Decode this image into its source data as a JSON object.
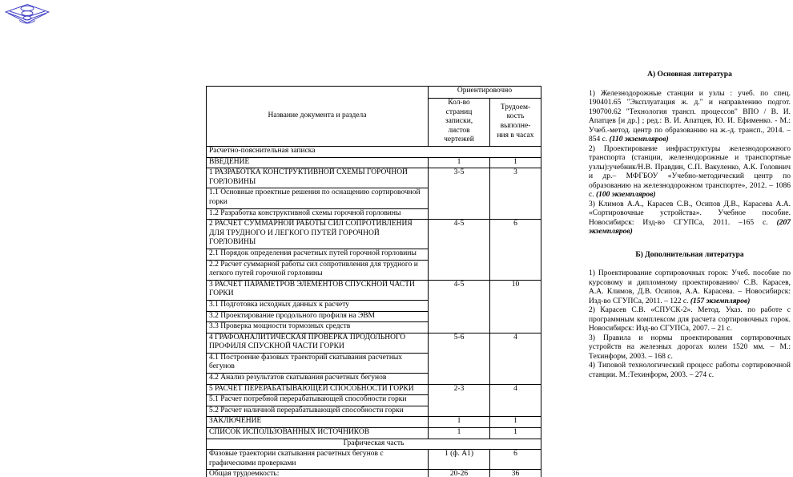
{
  "logo": {
    "name": "university-emblem",
    "color": "#4343c6"
  },
  "table": {
    "header": {
      "col1": "Название документа и раздела",
      "group": "Ориентировочно",
      "col2": "Кол-во\nстраниц\nзаписки,\nлистов\nчертежей",
      "col3": "Трудоем-\nкость\nвыполне-\nния в часах"
    },
    "rows": [
      {
        "type": "span",
        "align": "left",
        "label": "Расчетно-пояснительная записка"
      },
      {
        "type": "row",
        "label": "ВВЕДЕНИЕ",
        "pages": "1",
        "hours": "1",
        "rowspan": 1
      },
      {
        "type": "row",
        "label": "1 РАЗРАБОТКА КОНСТРУКТИВНОЙ СХЕМЫ ГОРОЧНОЙ ГОРЛОВИНЫ",
        "pages": "3-5",
        "hours": "3",
        "rowspan": 3
      },
      {
        "type": "sub",
        "label": "1.1 Основные проектные решения по оснащению сортировочной горки"
      },
      {
        "type": "sub",
        "label": "1.2 Разработка конструктивной схемы горочной горловины"
      },
      {
        "type": "row",
        "label": "2 РАСЧЕТ СУММАРНОЙ РАБОТЫ СИЛ СОПРОТИВЛЕНИЯ ДЛЯ ТРУДНОГО И ЛЕГКОГО ПУТЕЙ ГОРОЧНОЙ ГОРЛОВИНЫ",
        "pages": "4-5",
        "hours": "6",
        "rowspan": 3
      },
      {
        "type": "sub",
        "label": "2.1 Порядок определения расчетных путей горочной горловины"
      },
      {
        "type": "sub",
        "label": "2.2 Расчет суммарной работы сил сопротивления для трудного и легкого путей горочной горловины"
      },
      {
        "type": "row",
        "label": "3 РАСЧЕТ ПАРАМЕТРОВ ЭЛЕМЕНТОВ СПУСКНОЙ ЧАСТИ ГОРКИ",
        "pages": "4-5",
        "hours": "10",
        "rowspan": 4
      },
      {
        "type": "sub",
        "label": "3.1 Подготовка исходных данных к расчету"
      },
      {
        "type": "sub",
        "label": "3.2 Проектирование продольного профиля на ЭВМ"
      },
      {
        "type": "sub",
        "label": "3.3 Проверка мощности тормозных средств"
      },
      {
        "type": "row",
        "label": "4 ГРАФОАНАЛИТИЧЕСКАЯ ПРОВЕРКА ПРОДОЛЬНОГО ПРОФИЛЯ СПУСКНОЙ ЧАСТИ ГОРКИ",
        "pages": "5-6",
        "hours": "4",
        "rowspan": 3
      },
      {
        "type": "sub",
        "label": "4.1 Построение фазовых траекторий скатывания расчетных бегунов"
      },
      {
        "type": "sub",
        "label": "4.2 Анализ результатов скатывания расчетных бегунов"
      },
      {
        "type": "row",
        "label": "5 РАСЧЕТ ПЕРЕРАБАТЫВАЮЩЕЙ СПОСОБНОСТИ ГОРКИ",
        "pages": "2-3",
        "hours": "4",
        "rowspan": 3
      },
      {
        "type": "sub",
        "label": "5.1 Расчет потребной перерабатывающей способности горки"
      },
      {
        "type": "sub",
        "label": "5.2 Расчет наличной перерабатывающей способности горки"
      },
      {
        "type": "row",
        "label": "ЗАКЛЮЧЕНИЕ",
        "pages": "1",
        "hours": "1",
        "rowspan": 1
      },
      {
        "type": "row",
        "label": "СПИСОК ИСПОЛЬЗОВАННЫХ ИСТОЧНИКОВ",
        "pages": "1",
        "hours": "1",
        "rowspan": 1
      },
      {
        "type": "span",
        "align": "center",
        "label": "Графическая часть"
      },
      {
        "type": "row",
        "label": "Фазовые траектории скатывания расчетных бегунов с графическими проверками",
        "pages": "1 (ф. А1)",
        "hours": "6",
        "rowspan": 1
      },
      {
        "type": "row",
        "label": "Общая трудоемкость:",
        "pages": "20-26",
        "hours": "36",
        "rowspan": 1
      }
    ]
  },
  "references": {
    "sections": [
      {
        "heading": "А) Основная литература",
        "items": [
          {
            "segments": [
              {
                "text": "1) Железнодорожные станции и узлы : учеб. по спец. 190401.65 \"Эксплуатация ж. д.\" и направлению подгот. 190700.62 \"Технология трансп. процессов\" ВПО / В. И. Апатцев [и др.] ; ред.: В. И. Апатцев, Ю. И. Ефименко. - М.: Учеб.-метод. центр по образованию на ж.-д. трансп., 2014. – 854 с. ",
                "emph": false
              },
              {
                "text": "(110 экземпляров)",
                "emph": true
              }
            ]
          },
          {
            "segments": [
              {
                "text": "2) Проектирование инфраструктуры железнодорожного транспорта (станции, железнодорожные и транспортные узлы):учебник/Н.В. Правдин, С.П. Вакуленко, А.К. Головнич и др.– МФГБОУ «Учебно-методический центр по образованию на железнодорожном транспорте», 2012. – 1086 с. ",
                "emph": false
              },
              {
                "text": "(100 экземпляров)",
                "emph": true
              }
            ]
          },
          {
            "segments": [
              {
                "text": "3) Климов А.А., Карасев С.В., Осипов Д.В., Карасева А.А. «Сортировочные устройства». Учебное пособие. Новосибирск: Изд-во СГУПСа, 2011. –165 с. ",
                "emph": false
              },
              {
                "text": "(207 экземпляров)",
                "emph": true
              }
            ]
          }
        ]
      },
      {
        "heading": "Б) Дополнительная литература",
        "items": [
          {
            "segments": [
              {
                "text": "1) Проектирование сортировочных горок: Учеб. пособие по курсовому и дипломному проектированию/ С.В. Карасев, А.А. Климов, Д.В. Осипов, А.А. Карасева. – Новосибирск: Изд-во СГУПСа, 2011. – 122 с. ",
                "emph": false
              },
              {
                "text": "(157 экземпляров)",
                "emph": true
              }
            ]
          },
          {
            "segments": [
              {
                "text": "2) Карасев С.В. «СПУСК-2». Метод. Указ. по работе с программным комплексом для расчета сортировочных горок. Новосибирск: Изд-во СГУПСа, 2007. – 21 с.",
                "emph": false
              }
            ]
          },
          {
            "segments": [
              {
                "text": "3) Правила и нормы проектирования сортировочных устройств на железных дорогах колеи 1520 мм. – М.: Техинформ, 2003. – 168 с.",
                "emph": false
              }
            ]
          },
          {
            "segments": [
              {
                "text": "4) Типовой технологический процесс работы сортировочной станции. М.:Техинформ, 2003. – 274 с.",
                "emph": false
              }
            ]
          }
        ]
      }
    ]
  }
}
